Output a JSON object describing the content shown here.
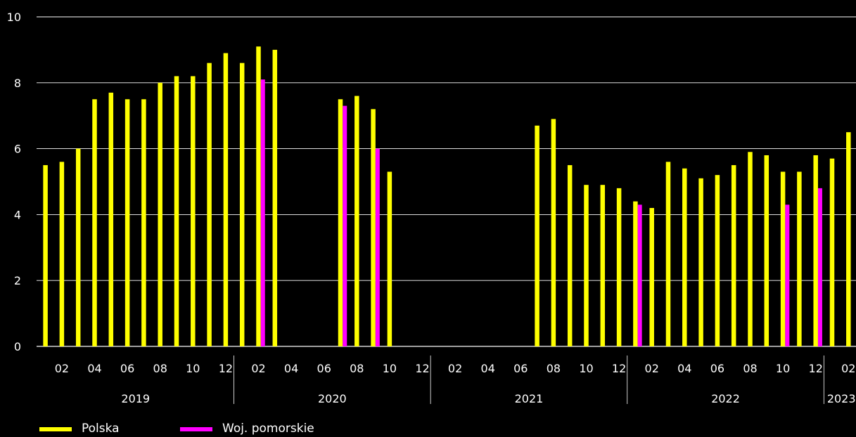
{
  "chart_data": {
    "type": "bar",
    "ylim": [
      0,
      10
    ],
    "yticks": [
      0,
      2,
      4,
      6,
      8,
      10
    ],
    "grid": true,
    "legend_position": "bottom-left",
    "colors": {
      "polska": "#ffff00",
      "pomorskie": "#ff00ff",
      "background": "#000000",
      "grid": "#ffffff"
    },
    "month_tick_labels": [
      "02",
      "04",
      "06",
      "08",
      "10",
      "12",
      "02",
      "04",
      "06",
      "08",
      "10",
      "12",
      "02",
      "04",
      "06",
      "08",
      "10",
      "12",
      "02",
      "04",
      "06",
      "08",
      "10",
      "12",
      "02"
    ],
    "years": [
      {
        "label": "2019"
      },
      {
        "label": "2020"
      },
      {
        "label": "2021"
      },
      {
        "label": "2022"
      },
      {
        "label": "2023"
      }
    ],
    "series": [
      {
        "name": "Polska",
        "color": "#ffff00",
        "values": [
          5.5,
          5.6,
          6.0,
          7.5,
          7.7,
          7.5,
          7.5,
          8.0,
          8.2,
          8.2,
          8.6,
          8.9,
          8.6,
          9.1,
          9.0,
          null,
          null,
          null,
          7.5,
          7.6,
          7.2,
          5.3,
          null,
          null,
          null,
          null,
          null,
          null,
          null,
          null,
          6.7,
          6.9,
          5.5,
          4.9,
          4.9,
          4.8,
          4.4,
          4.2,
          5.6,
          5.4,
          5.1,
          5.2,
          5.5,
          5.9,
          5.8,
          5.3,
          5.3,
          5.8,
          5.7,
          6.5
        ]
      },
      {
        "name": "Woj. pomorskie",
        "color": "#ff00ff",
        "values": [
          null,
          null,
          null,
          null,
          null,
          null,
          null,
          null,
          null,
          null,
          null,
          null,
          null,
          8.1,
          null,
          null,
          null,
          null,
          7.3,
          null,
          6.0,
          null,
          null,
          null,
          null,
          null,
          null,
          null,
          null,
          null,
          null,
          null,
          null,
          null,
          null,
          null,
          4.3,
          null,
          null,
          null,
          null,
          null,
          null,
          null,
          null,
          4.3,
          null,
          4.8,
          null,
          null
        ]
      }
    ]
  }
}
